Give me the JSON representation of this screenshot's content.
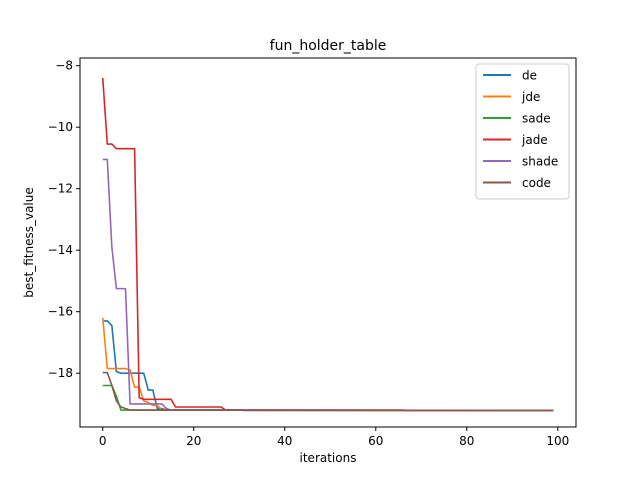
{
  "chart_data": {
    "type": "line",
    "title": "fun_holder_table",
    "xlabel": "iterations",
    "ylabel": "best_fitness_value",
    "xlim": [
      -5,
      104
    ],
    "ylim": [
      -19.75,
      -7.75
    ],
    "xticks": [
      0,
      20,
      40,
      60,
      80,
      100
    ],
    "xtick_labels": [
      "0",
      "20",
      "40",
      "60",
      "80",
      "100"
    ],
    "yticks": [
      -18,
      -16,
      -14,
      -12,
      -10,
      -8
    ],
    "ytick_labels": [
      "−18",
      "−16",
      "−14",
      "−12",
      "−10",
      "−8"
    ],
    "grid": false,
    "legend_position": "upper right",
    "series": [
      {
        "name": "de",
        "color": "#1f77b4",
        "points": [
          [
            0,
            -16.3
          ],
          [
            1,
            -16.3
          ],
          [
            2,
            -16.45
          ],
          [
            3,
            -17.95
          ],
          [
            4,
            -18.0
          ],
          [
            5,
            -18.0
          ],
          [
            6,
            -18.0
          ],
          [
            7,
            -18.0
          ],
          [
            8,
            -18.0
          ],
          [
            9,
            -18.0
          ],
          [
            10,
            -18.55
          ],
          [
            11,
            -18.55
          ],
          [
            12,
            -19.15
          ],
          [
            13,
            -19.15
          ],
          [
            14,
            -19.2
          ],
          [
            30,
            -19.2
          ],
          [
            31,
            -19.21
          ],
          [
            99,
            -19.21
          ]
        ]
      },
      {
        "name": "jde",
        "color": "#ff7f0e",
        "points": [
          [
            0,
            -16.2
          ],
          [
            1,
            -17.85
          ],
          [
            2,
            -17.85
          ],
          [
            3,
            -17.85
          ],
          [
            4,
            -17.85
          ],
          [
            5,
            -17.85
          ],
          [
            6,
            -17.9
          ],
          [
            7,
            -18.45
          ],
          [
            8,
            -18.45
          ],
          [
            9,
            -18.9
          ],
          [
            10,
            -18.95
          ],
          [
            11,
            -19.05
          ],
          [
            12,
            -19.05
          ],
          [
            13,
            -19.2
          ],
          [
            99,
            -19.21
          ]
        ]
      },
      {
        "name": "sade",
        "color": "#2ca02c",
        "points": [
          [
            0,
            -18.4
          ],
          [
            1,
            -18.4
          ],
          [
            2,
            -18.4
          ],
          [
            3,
            -18.75
          ],
          [
            4,
            -19.2
          ],
          [
            5,
            -19.2
          ],
          [
            99,
            -19.21
          ]
        ]
      },
      {
        "name": "jade",
        "color": "#d62728",
        "points": [
          [
            0,
            -8.4
          ],
          [
            1,
            -10.55
          ],
          [
            2,
            -10.55
          ],
          [
            3,
            -10.7
          ],
          [
            4,
            -10.7
          ],
          [
            5,
            -10.7
          ],
          [
            6,
            -10.7
          ],
          [
            7,
            -10.7
          ],
          [
            8,
            -18.8
          ],
          [
            9,
            -18.85
          ],
          [
            10,
            -18.85
          ],
          [
            11,
            -18.85
          ],
          [
            12,
            -18.85
          ],
          [
            13,
            -18.85
          ],
          [
            14,
            -18.85
          ],
          [
            15,
            -18.85
          ],
          [
            16,
            -19.1
          ],
          [
            17,
            -19.1
          ],
          [
            26,
            -19.1
          ],
          [
            27,
            -19.2
          ],
          [
            66,
            -19.2
          ],
          [
            67,
            -19.21
          ],
          [
            99,
            -19.21
          ]
        ]
      },
      {
        "name": "shade",
        "color": "#9467bd",
        "points": [
          [
            0,
            -11.05
          ],
          [
            1,
            -11.05
          ],
          [
            2,
            -13.9
          ],
          [
            3,
            -15.25
          ],
          [
            4,
            -15.25
          ],
          [
            5,
            -15.25
          ],
          [
            6,
            -19.0
          ],
          [
            7,
            -19.0
          ],
          [
            8,
            -19.0
          ],
          [
            9,
            -19.0
          ],
          [
            10,
            -19.0
          ],
          [
            11,
            -19.0
          ],
          [
            12,
            -19.0
          ],
          [
            13,
            -19.0
          ],
          [
            14,
            -19.15
          ],
          [
            15,
            -19.2
          ],
          [
            99,
            -19.21
          ]
        ]
      },
      {
        "name": "code",
        "color": "#8c564b",
        "points": [
          [
            0,
            -17.98
          ],
          [
            1,
            -17.98
          ],
          [
            2,
            -18.4
          ],
          [
            3,
            -18.9
          ],
          [
            4,
            -19.1
          ],
          [
            5,
            -19.15
          ],
          [
            6,
            -19.2
          ],
          [
            7,
            -19.2
          ],
          [
            99,
            -19.21
          ]
        ]
      }
    ]
  }
}
